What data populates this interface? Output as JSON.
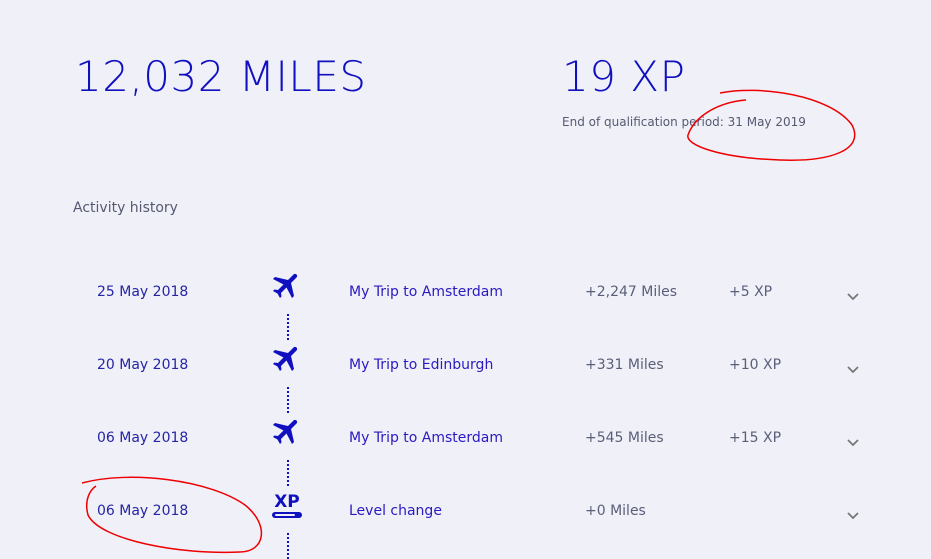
{
  "summary": {
    "miles": "12,032 MILES",
    "xp": "19 XP",
    "qualification": "End of qualification period: 31 May 2019"
  },
  "section_title": "Activity history",
  "activities": [
    {
      "date": "25 May 2018",
      "icon": "airplane-icon",
      "title": "My Trip to Amsterdam",
      "miles": "+2,247 Miles",
      "xp": "+5 XP"
    },
    {
      "date": "20 May 2018",
      "icon": "airplane-icon",
      "title": "My Trip to Edinburgh",
      "miles": "+331 Miles",
      "xp": "+10 XP"
    },
    {
      "date": "06 May 2018",
      "icon": "airplane-icon",
      "title": "My Trip to Amsterdam",
      "miles": "+545 Miles",
      "xp": "+15 XP"
    },
    {
      "date": "06 May 2018",
      "icon": "xp-level-icon",
      "title": "Level change",
      "miles": "+0 Miles",
      "xp": ""
    }
  ],
  "colors": {
    "accent": "#1010c0",
    "background": "#f0f0f9",
    "annotation": "#e00000"
  }
}
